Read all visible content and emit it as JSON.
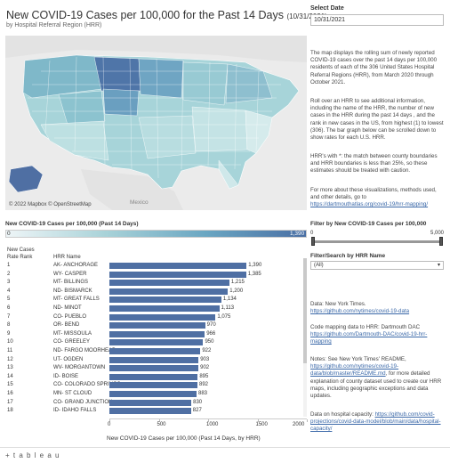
{
  "header": {
    "title": "New COVID-19 Cases per 100,000 for the Past 14 Days",
    "title_date": "(10/31/2021)",
    "subtitle": "by Hospital Referral Region (HRR)"
  },
  "map": {
    "label_mexico": "Mexico",
    "attribution": "© 2022 Mapbox  © OpenStreetMap"
  },
  "date_filter": {
    "label": "Select Date",
    "value": "10/31/2021"
  },
  "description": {
    "p1": "The map displays the rolling sum of newly reported COVID-19 cases over the past 14 days per 100,000 residents of each of the 306 United States Hospital Referral Regions (HRR), from March 2020 through October 2021.",
    "p2": "Roll over an HRR to see additional information, including the name of the HRR, the number of new cases in the HRR during the past 14 days , and the rank in new cases in the US, from highest (1) to lowest (306). The bar graph below can be scrolled down to show rates for each U.S. HRR.",
    "p3": "HRR's with *: the match between county boundaries and HRR boundaries is less than 25%, so these estimates should be treated with caution.",
    "p4": "For more about these visualizations, methods used, and other details, go to",
    "p4_link": "https://dartmouthatlas.org/covid-19/hrr-mapping/"
  },
  "legend": {
    "title": "New COVID-19 Cases per 100,000 (Past 14 Days)",
    "min": "0",
    "max": "1,390",
    "colors": [
      "#eef5f7",
      "#a8d2d8",
      "#6aa6c2",
      "#4a6fa4"
    ]
  },
  "range_filter": {
    "label": "Filter by New COVID-19 Cases per 100,000",
    "min": "0",
    "max": "5,000"
  },
  "hrr_filter": {
    "label": "Filter/Search by HRR Name",
    "value": "(All)"
  },
  "table": {
    "header_new_cases": "New Cases",
    "header_rate_rank": "Rate Rank",
    "header_hrr_name": "HRR Name",
    "axis_title": "New COVID-19 Cases per 100,000 (Past 14 Days, by HRR)",
    "bar_color": "#4f6fa3"
  },
  "chart_data": {
    "type": "bar",
    "orientation": "horizontal",
    "xlabel": "New COVID-19 Cases per 100,000 (Past 14 Days, by HRR)",
    "xlim": [
      0,
      2000
    ],
    "ticks": [
      "0",
      "500",
      "1000",
      "1500",
      "2000"
    ],
    "categories": [
      "AK- ANCHORAGE",
      "WY- CASPER",
      "MT- BILLINGS",
      "ND- BISMARCK",
      "MT- GREAT FALLS",
      "ND- MINOT",
      "CO- PUEBLO",
      "OR- BEND",
      "MT- MISSOULA",
      "CO- GREELEY",
      "ND- FARGO MOORHEAD -...",
      "UT- OGDEN",
      "WV- MORGANTOWN",
      "ID- BOISE",
      "CO- COLORADO SPRINGS",
      "MN- ST CLOUD",
      "CO- GRAND JUNCTION",
      "ID- IDAHO FALLS"
    ],
    "ranks": [
      "1",
      "2",
      "3",
      "4",
      "5",
      "6",
      "7",
      "8",
      "9",
      "10",
      "11",
      "12",
      "13",
      "14",
      "15",
      "16",
      "17",
      "18"
    ],
    "values": [
      1390,
      1385,
      1215,
      1200,
      1134,
      1113,
      1075,
      970,
      966,
      950,
      922,
      903,
      902,
      895,
      892,
      883,
      830,
      827
    ],
    "value_labels": [
      "1,390",
      "1,385",
      "1,215",
      "1,200",
      "1,134",
      "1,113",
      "1,075",
      "970",
      "966",
      "950",
      "922",
      "903",
      "902",
      "895",
      "892",
      "883",
      "830",
      "827"
    ]
  },
  "sources": {
    "data_label": "Data: New York Times.",
    "data_link": "https://github.com/nytimes/covid-19-data",
    "code_label": "Code mapping data to HRR: Dartmouth DAC",
    "code_link": "https://github.com/Dartmouth-DAC/covid-19-hrr-mapping",
    "notes_label": "Notes: See New York Times' README,",
    "notes_link": "https://github.com/nytimes/covid-19-data/blob/master/README.md",
    "notes_rest": ", for more detailed explanation of county dataset used to create our HRR maps, including geographic exceptions and data updates.",
    "capacity_label": "Data on hospital capacity:",
    "capacity_link": "https://github.com/covid-projections/covid-data-model/blob/main/data/hospital-capacity/"
  },
  "footer": {
    "logo": "+ t a b l e a u"
  }
}
